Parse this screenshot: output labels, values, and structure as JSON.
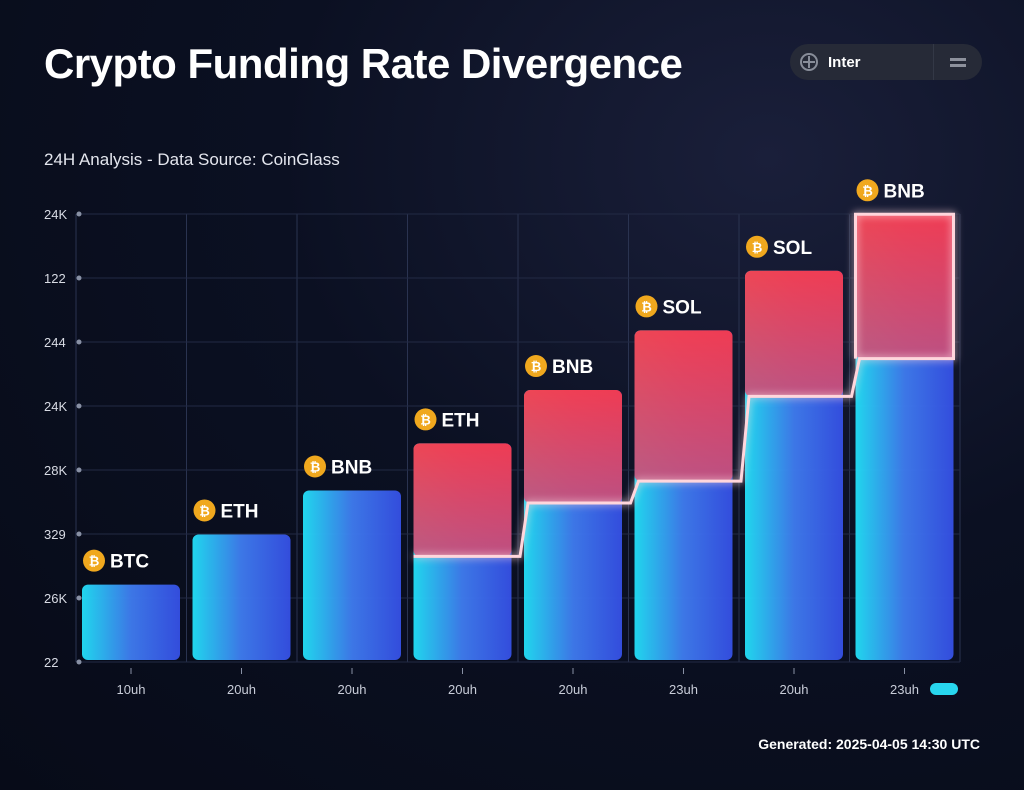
{
  "title": "Crypto Funding Rate Divergence",
  "subtitle": "24H Analysis - Data Source: CoinGlass",
  "control": {
    "label": "Inter",
    "icon": "plus-circle-icon",
    "menu_icon": "menu-icon"
  },
  "footer": "Generated: 2025-04-05 14:30 UTC",
  "chart_data": {
    "type": "bar",
    "title": "Crypto Funding Rate Divergence",
    "ylim": [
      0,
      7.2
    ],
    "y_ticks": [
      "22",
      "26K",
      "329",
      "28K",
      "24K",
      "244",
      "122",
      "24K"
    ],
    "categories": [
      "10uh",
      "20uh",
      "20uh",
      "20uh",
      "20uh",
      "23uh",
      "20uh",
      "23uh"
    ],
    "bar_labels": [
      "BTC",
      "ETH",
      "BNB",
      "ETH",
      "BNB",
      "SOL",
      "SOL",
      "BNB"
    ],
    "values": [
      1.2,
      2.0,
      2.7,
      3.45,
      4.3,
      5.25,
      6.2,
      7.1
    ],
    "overlay_line": {
      "start_index": 3,
      "values": [
        null,
        null,
        null,
        1.65,
        2.5,
        2.85,
        4.2,
        4.8
      ]
    },
    "grid": true,
    "colors": {
      "low": "#22d8f5",
      "high": "#ff3b4a",
      "mid": "#3a5ef0",
      "glow": "#ffd6dc",
      "coin": "#f0a81e"
    }
  }
}
